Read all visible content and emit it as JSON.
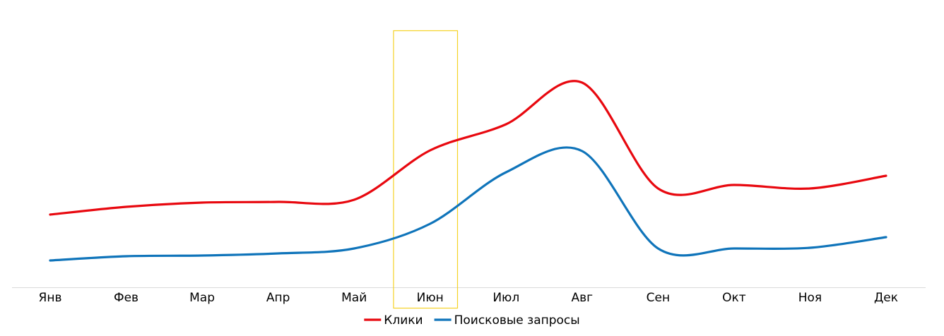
{
  "chart_data": {
    "type": "line",
    "categories": [
      "Янв",
      "Фев",
      "Мар",
      "Апр",
      "Май",
      "Июн",
      "Июл",
      "Авг",
      "Сен",
      "Окт",
      "Ноя",
      "Дек"
    ],
    "series": [
      {
        "name": "Клики",
        "color": "#e8080f",
        "values": [
          103,
          114,
          120,
          121,
          124,
          194,
          231,
          290,
          140,
          145,
          140,
          158
        ]
      },
      {
        "name": "Поисковые запросы",
        "color": "#0f74ba",
        "values": [
          38,
          44,
          45,
          48,
          55,
          90,
          163,
          193,
          55,
          55,
          56,
          71
        ]
      }
    ],
    "ylim": [
      0,
      380
    ],
    "highlight_category": "Июн",
    "highlight_color": "#f5d327",
    "axis_color": "#d9d9d9",
    "legend_position": "bottom",
    "smooth": true
  }
}
